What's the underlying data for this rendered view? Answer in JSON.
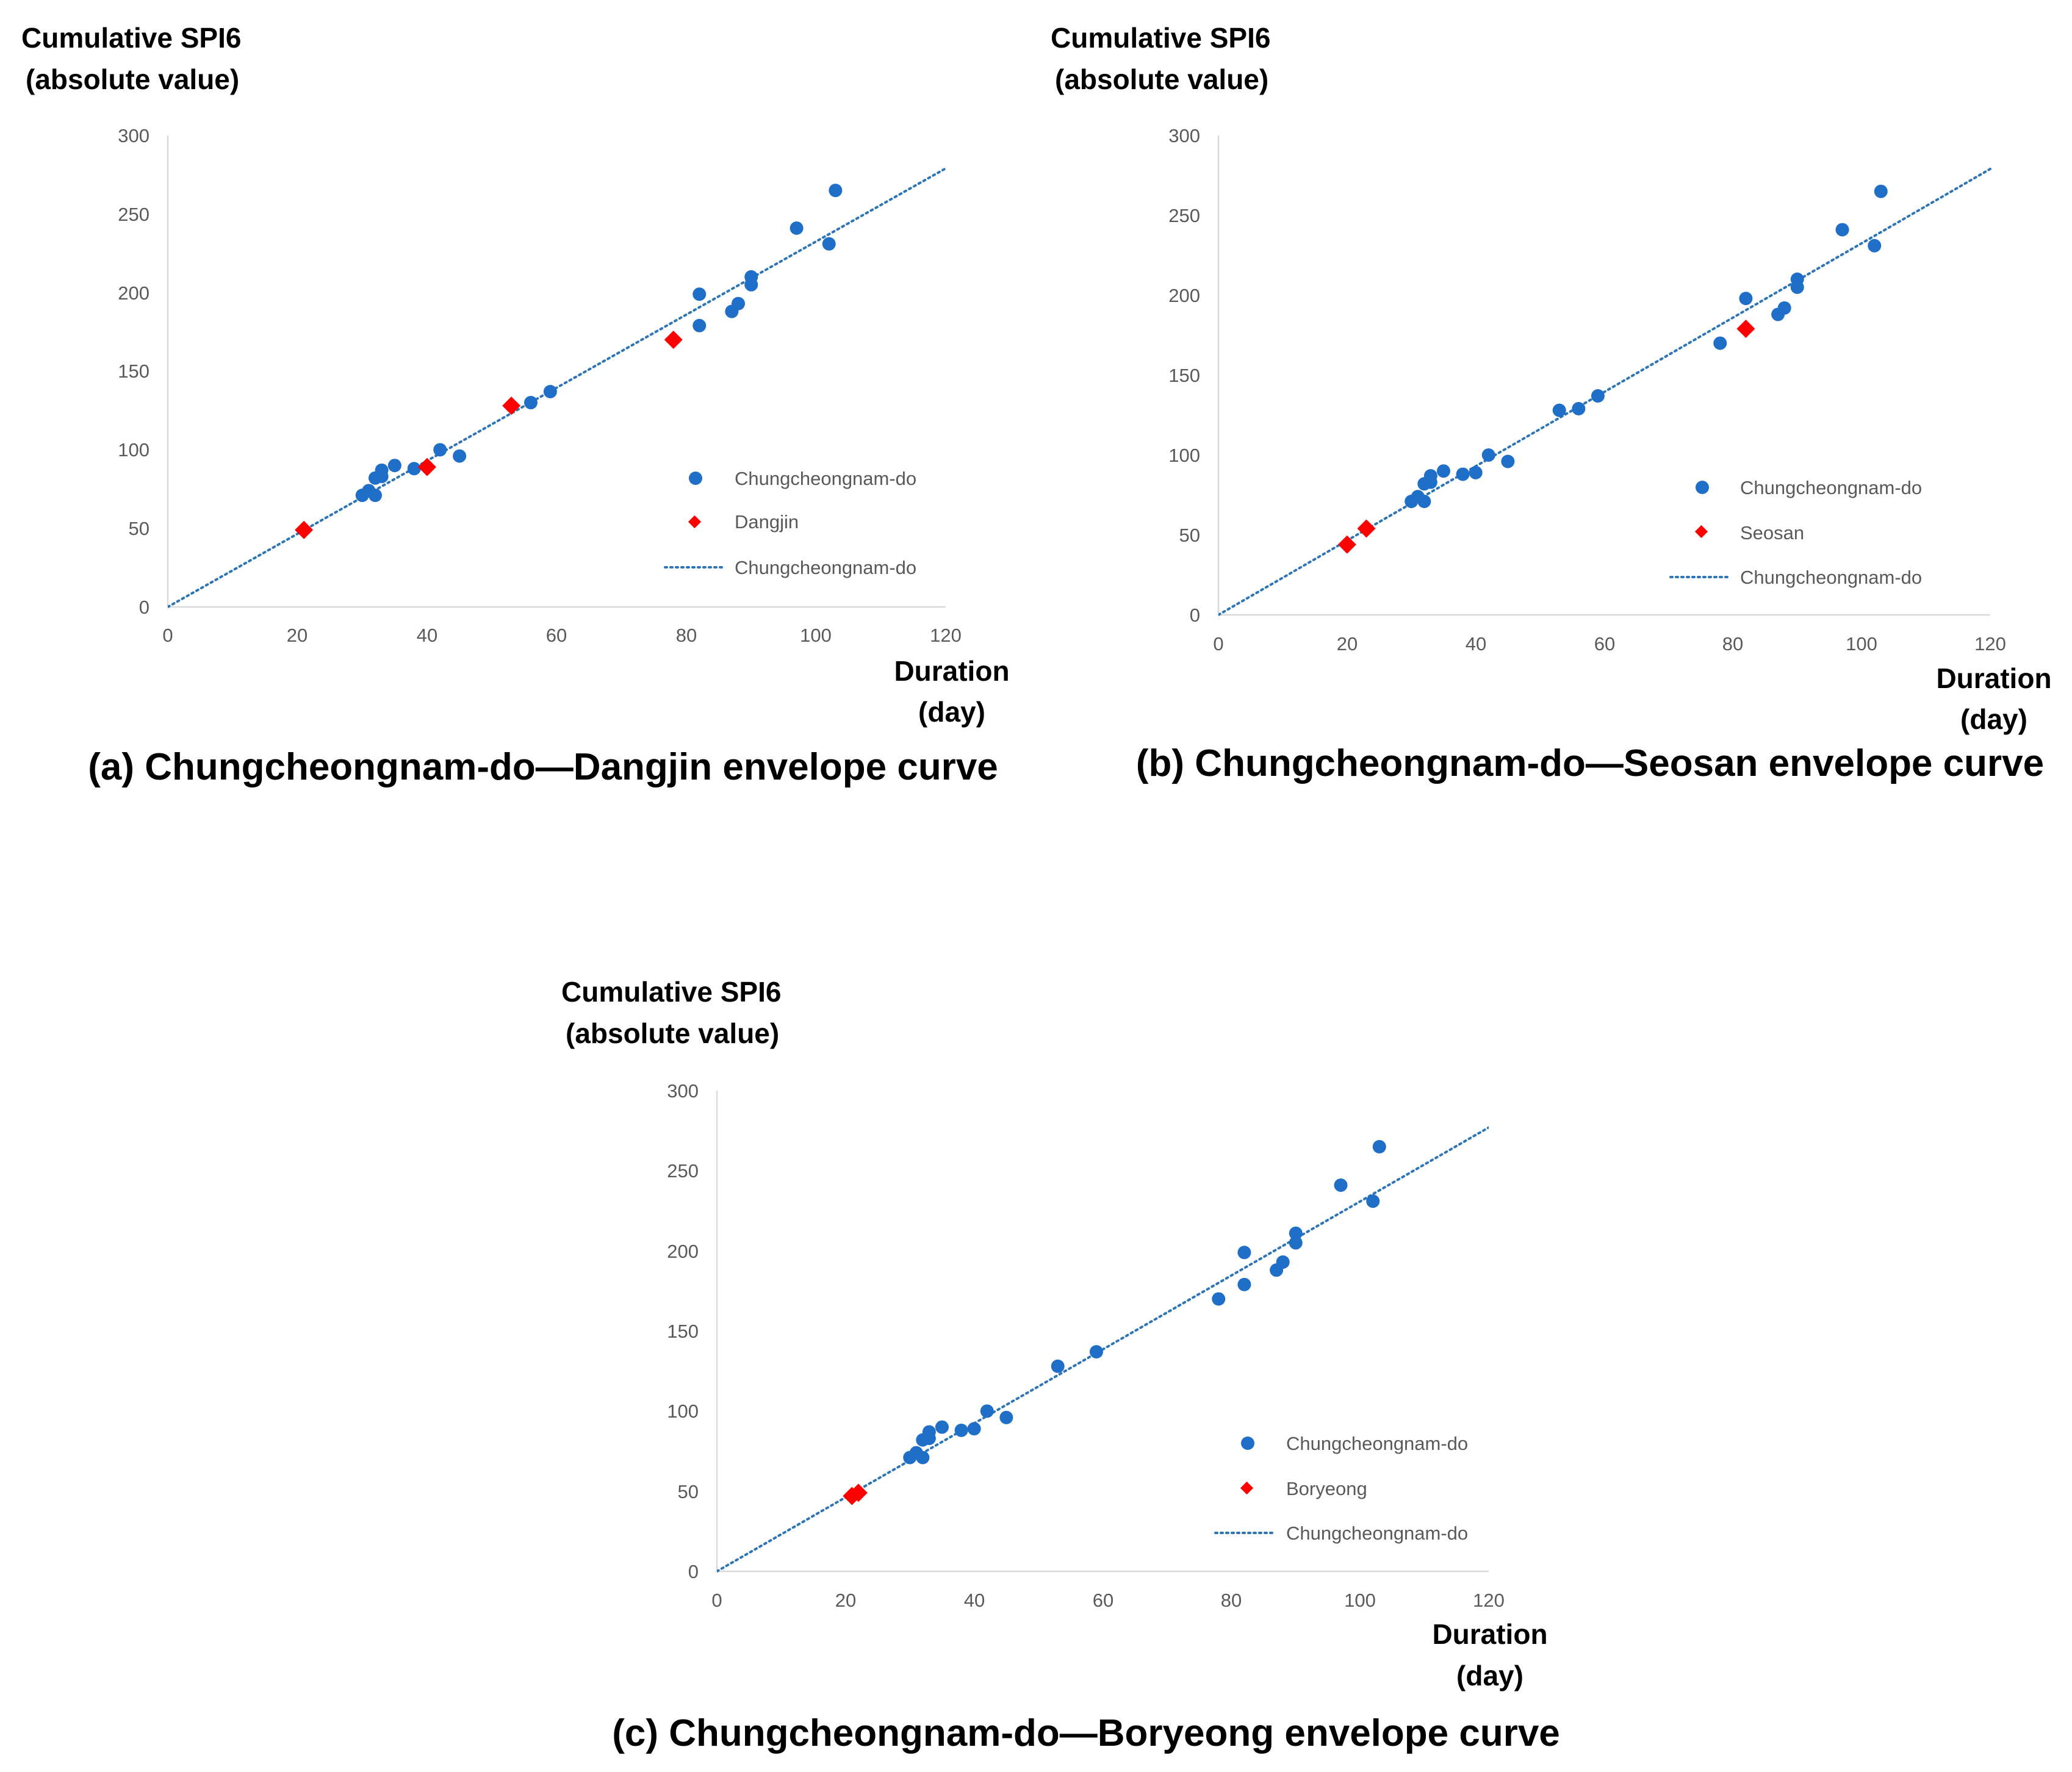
{
  "colors": {
    "series_blue": "#1f6fc8",
    "highlight_red": "#ff0000",
    "trend_blue": "#2e75b6",
    "axis_line": "#d9d9d9",
    "tick_text": "#595959"
  },
  "chart_data": [
    {
      "type": "scatter",
      "panel": "a",
      "caption": "(a) Chungcheongnam-do—Dangjin envelope curve",
      "ylabel_line1": "Cumulative SPI6",
      "ylabel_line2": "(absolute value)",
      "xlabel_line1": "Duration",
      "xlabel_line2": "(day)",
      "xlim": [
        0,
        120
      ],
      "ylim": [
        0,
        300
      ],
      "x_ticks": [
        "0",
        "20",
        "40",
        "60",
        "80",
        "100",
        "120"
      ],
      "y_ticks": [
        "0",
        "50",
        "100",
        "150",
        "200",
        "250",
        "300"
      ],
      "legend": [
        "Chungcheongnam-do",
        "Dangjin",
        "Chungcheongnam-do"
      ],
      "series": [
        {
          "name": "Chungcheongnam-do",
          "marker": "circle",
          "points": [
            [
              30,
              71
            ],
            [
              31,
              74
            ],
            [
              32,
              71
            ],
            [
              32,
              82
            ],
            [
              33,
              83
            ],
            [
              33,
              87
            ],
            [
              35,
              90
            ],
            [
              38,
              88
            ],
            [
              42,
              100
            ],
            [
              45,
              96
            ],
            [
              56,
              130
            ],
            [
              59,
              137
            ],
            [
              82,
              199
            ],
            [
              82,
              179
            ],
            [
              87,
              188
            ],
            [
              88,
              193
            ],
            [
              90,
              205
            ],
            [
              90,
              210
            ],
            [
              97,
              241
            ],
            [
              102,
              231
            ],
            [
              103,
              265
            ]
          ]
        },
        {
          "name": "Dangjin",
          "marker": "diamond",
          "points": [
            [
              21,
              49
            ],
            [
              40,
              89
            ],
            [
              53,
              128
            ],
            [
              78,
              170
            ]
          ]
        }
      ],
      "trendline": {
        "name": "Chungcheongnam-do",
        "x": [
          0,
          120
        ],
        "y": [
          0,
          279
        ]
      }
    },
    {
      "type": "scatter",
      "panel": "b",
      "caption": "(b) Chungcheongnam-do—Seosan envelope curve",
      "ylabel_line1": "Cumulative SPI6",
      "ylabel_line2": "(absolute value)",
      "xlabel_line1": "Duration",
      "xlabel_line2": "(day)",
      "xlim": [
        0,
        120
      ],
      "ylim": [
        0,
        300
      ],
      "x_ticks": [
        "0",
        "20",
        "40",
        "60",
        "80",
        "100",
        "120"
      ],
      "y_ticks": [
        "0",
        "50",
        "100",
        "150",
        "200",
        "250",
        "300"
      ],
      "legend": [
        "Chungcheongnam-do",
        "Seosan",
        "Chungcheongnam-do"
      ],
      "series": [
        {
          "name": "Chungcheongnam-do",
          "marker": "circle",
          "points": [
            [
              30,
              71
            ],
            [
              31,
              74
            ],
            [
              32,
              71
            ],
            [
              32,
              82
            ],
            [
              33,
              83
            ],
            [
              33,
              87
            ],
            [
              35,
              90
            ],
            [
              38,
              88
            ],
            [
              40,
              89
            ],
            [
              42,
              100
            ],
            [
              45,
              96
            ],
            [
              53,
              128
            ],
            [
              56,
              129
            ],
            [
              59,
              137
            ],
            [
              78,
              170
            ],
            [
              82,
              198
            ],
            [
              87,
              188
            ],
            [
              88,
              192
            ],
            [
              90,
              205
            ],
            [
              90,
              210
            ],
            [
              97,
              241
            ],
            [
              102,
              231
            ],
            [
              103,
              265
            ]
          ]
        },
        {
          "name": "Seosan",
          "marker": "diamond",
          "points": [
            [
              20,
              44
            ],
            [
              23,
              54
            ],
            [
              82,
              179
            ]
          ]
        }
      ],
      "trendline": {
        "name": "Chungcheongnam-do",
        "x": [
          0,
          120
        ],
        "y": [
          0,
          279
        ]
      }
    },
    {
      "type": "scatter",
      "panel": "c",
      "caption": "(c) Chungcheongnam-do—Boryeong envelope curve",
      "ylabel_line1": "Cumulative SPI6",
      "ylabel_line2": "(absolute value)",
      "xlabel_line1": "Duration",
      "xlabel_line2": "(day)",
      "xlim": [
        0,
        120
      ],
      "ylim": [
        0,
        300
      ],
      "x_ticks": [
        "0",
        "20",
        "40",
        "60",
        "80",
        "100",
        "120"
      ],
      "y_ticks": [
        "0",
        "50",
        "100",
        "150",
        "200",
        "250",
        "300"
      ],
      "legend": [
        "Chungcheongnam-do",
        "Boryeong",
        "Chungcheongnam-do"
      ],
      "series": [
        {
          "name": "Chungcheongnam-do",
          "marker": "circle",
          "points": [
            [
              30,
              71
            ],
            [
              31,
              74
            ],
            [
              32,
              71
            ],
            [
              32,
              82
            ],
            [
              33,
              83
            ],
            [
              33,
              87
            ],
            [
              35,
              90
            ],
            [
              38,
              88
            ],
            [
              40,
              89
            ],
            [
              42,
              100
            ],
            [
              45,
              96
            ],
            [
              53,
              128
            ],
            [
              59,
              137
            ],
            [
              78,
              170
            ],
            [
              82,
              199
            ],
            [
              82,
              179
            ],
            [
              87,
              188
            ],
            [
              88,
              193
            ],
            [
              90,
              205
            ],
            [
              90,
              211
            ],
            [
              97,
              241
            ],
            [
              102,
              231
            ],
            [
              103,
              265
            ]
          ]
        },
        {
          "name": "Boryeong",
          "marker": "diamond",
          "points": [
            [
              21,
              47
            ],
            [
              22,
              49
            ]
          ]
        }
      ],
      "trendline": {
        "name": "Chungcheongnam-do",
        "x": [
          0,
          120
        ],
        "y": [
          0,
          277
        ]
      }
    }
  ]
}
